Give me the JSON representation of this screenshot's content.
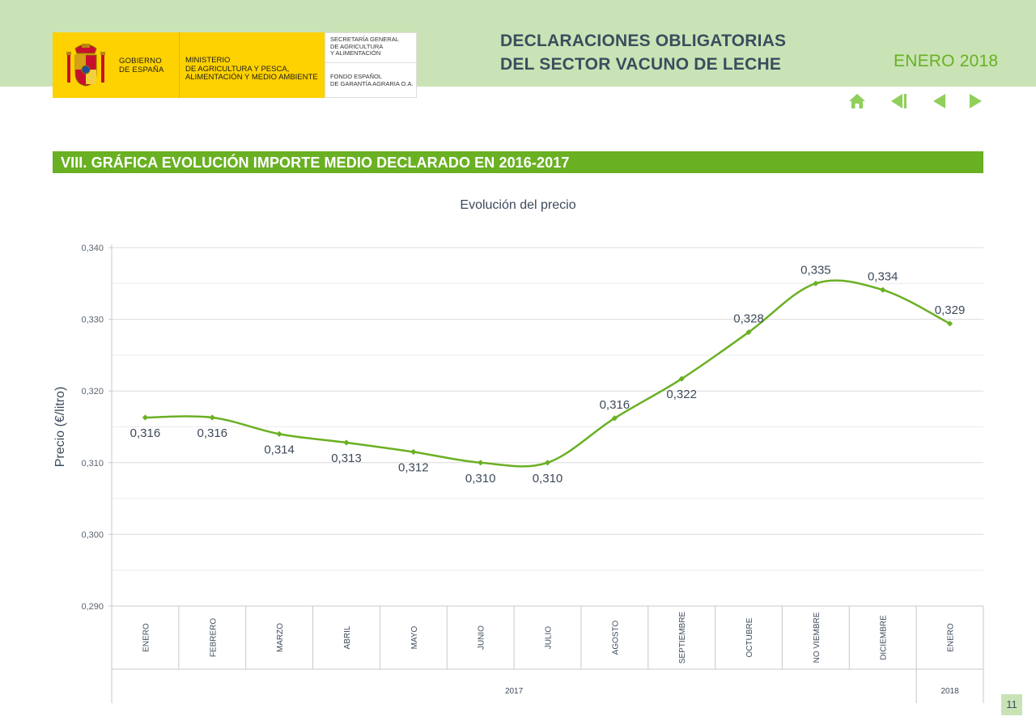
{
  "header": {
    "gobierno": [
      "GOBIERNO",
      "DE ESPAÑA"
    ],
    "ministerio": [
      "MINISTERIO",
      "DE AGRICULTURA Y PESCA,",
      "ALIMENTACIÓN Y MEDIO AMBIENTE"
    ],
    "secretaria": [
      "SECRETARÍA GENERAL",
      "DE AGRICULTURA",
      "Y ALIMENTACIÓN"
    ],
    "fondo": [
      "FONDO ESPAÑOL",
      "DE GARANTÍA AGRARIA O.A."
    ],
    "title_line1": "DECLARACIONES OBLIGATORIAS",
    "title_line2": "DEL SECTOR VACUNO DE LECHE",
    "date": "ENERO 2018"
  },
  "nav": {
    "icons": [
      "home-icon",
      "first-page-icon",
      "previous-page-icon",
      "next-page-icon"
    ]
  },
  "section": {
    "title": "VIII. GRÁFICA EVOLUCIÓN IMPORTE MEDIO DECLARADO EN 2016-2017"
  },
  "page_number": "11",
  "colors": {
    "accent_green": "#6ab023",
    "band_green": "#c9e3b6",
    "title_dark": "#3b4d5e",
    "brand_yellow": "#fed100"
  },
  "chart_data": {
    "type": "line",
    "title": "Evolución del precio",
    "ylabel": "Precio (€/litro)",
    "xlabel": "",
    "ylim": [
      0.29,
      0.34
    ],
    "ytick_values": [
      0.29,
      0.3,
      0.31,
      0.32,
      0.33,
      0.34
    ],
    "ytick_labels": [
      "0,290",
      "0,300",
      "0,310",
      "0,320",
      "0,330",
      "0,340"
    ],
    "minor_gridlines": true,
    "categories": [
      "ENERO",
      "FEBRERO",
      "MARZO",
      "ABRIL",
      "MAYO",
      "JUNIO",
      "JULIO",
      "AGOSTO",
      "SEPTIEMBRE",
      "OCTUBRE",
      "NO VIEMBRE",
      "DICIEMBRE",
      "ENERO"
    ],
    "years": [
      {
        "label": "2017",
        "from": 0,
        "to": 11
      },
      {
        "label": "2018",
        "from": 12,
        "to": 12
      }
    ],
    "series": [
      {
        "values": [
          0.3163,
          0.3163,
          0.314,
          0.3128,
          0.3115,
          0.31,
          0.31,
          0.3162,
          0.3217,
          0.3282,
          0.335,
          0.3341,
          0.3294
        ],
        "labels": [
          "0,316",
          "0,316",
          "0,314",
          "0,313",
          "0,312",
          "0,310",
          "0,310",
          "0,316",
          "0,322",
          "0,328",
          "0,335",
          "0,334",
          "0,329"
        ],
        "label_pos": [
          "below",
          "below",
          "below",
          "below",
          "below",
          "below",
          "below",
          "above",
          "below",
          "above",
          "above",
          "above",
          "above"
        ],
        "color": "#6ab023"
      }
    ]
  }
}
